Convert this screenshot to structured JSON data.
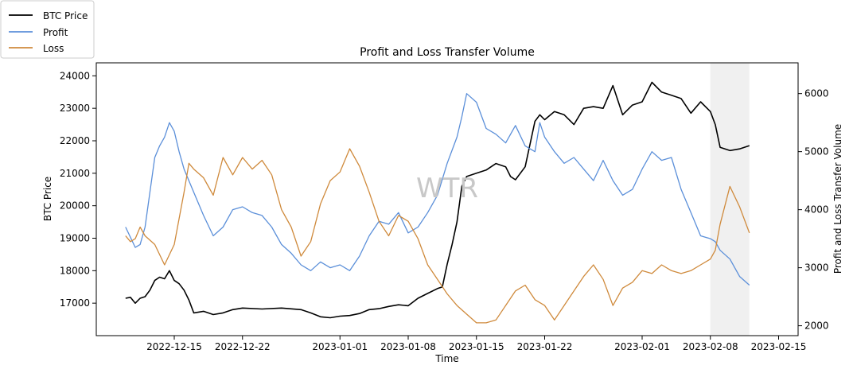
{
  "chart_data": {
    "type": "line",
    "title": "Profit and Loss Transfer Volume",
    "xlabel": "Time",
    "ylabel_left": "BTC Price",
    "ylabel_right": "Profit and Loss Transfer Volume",
    "watermark": "WTR",
    "legend_position": "top-left",
    "grid": false,
    "x_range": [
      "2022-12-07",
      "2023-02-17"
    ],
    "x_ticks": [
      "2022-12-15",
      "2022-12-22",
      "2023-01-01",
      "2023-01-08",
      "2023-01-15",
      "2023-01-22",
      "2023-02-01",
      "2023-02-08",
      "2023-02-15"
    ],
    "y_left_range": [
      16000,
      24400
    ],
    "y_left_ticks": [
      17000,
      18000,
      19000,
      20000,
      21000,
      22000,
      23000,
      24000
    ],
    "y_right_range": [
      1830,
      6530
    ],
    "y_right_ticks": [
      2000,
      3000,
      4000,
      5000,
      6000
    ],
    "shaded_region": [
      "2023-02-08",
      "2023-02-12"
    ],
    "series": [
      {
        "name": "BTC Price",
        "axis": "left",
        "color": "#000000",
        "points": [
          [
            "2022-12-10",
            17150
          ],
          [
            "2022-12-10T12",
            17180
          ],
          [
            "2022-12-11",
            17000
          ],
          [
            "2022-12-11T12",
            17150
          ],
          [
            "2022-12-12",
            17200
          ],
          [
            "2022-12-12T12",
            17400
          ],
          [
            "2022-12-13",
            17700
          ],
          [
            "2022-12-13T12",
            17800
          ],
          [
            "2022-12-14",
            17750
          ],
          [
            "2022-12-14T12",
            18000
          ],
          [
            "2022-12-15",
            17700
          ],
          [
            "2022-12-15T12",
            17600
          ],
          [
            "2022-12-16",
            17400
          ],
          [
            "2022-12-16T12",
            17100
          ],
          [
            "2022-12-17",
            16700
          ],
          [
            "2022-12-18",
            16750
          ],
          [
            "2022-12-19",
            16650
          ],
          [
            "2022-12-20",
            16700
          ],
          [
            "2022-12-21",
            16800
          ],
          [
            "2022-12-22",
            16850
          ],
          [
            "2022-12-24",
            16820
          ],
          [
            "2022-12-26",
            16850
          ],
          [
            "2022-12-28",
            16800
          ],
          [
            "2022-12-29",
            16700
          ],
          [
            "2022-12-30",
            16580
          ],
          [
            "2022-12-31",
            16550
          ],
          [
            "2023-01-01",
            16600
          ],
          [
            "2023-01-02",
            16620
          ],
          [
            "2023-01-03",
            16680
          ],
          [
            "2023-01-04",
            16800
          ],
          [
            "2023-01-05",
            16830
          ],
          [
            "2023-01-06",
            16900
          ],
          [
            "2023-01-07",
            16950
          ],
          [
            "2023-01-08",
            16920
          ],
          [
            "2023-01-09",
            17150
          ],
          [
            "2023-01-10",
            17300
          ],
          [
            "2023-01-11",
            17450
          ],
          [
            "2023-01-11T12",
            17500
          ],
          [
            "2023-01-12",
            18200
          ],
          [
            "2023-01-12T12",
            18800
          ],
          [
            "2023-01-13",
            19500
          ],
          [
            "2023-01-13T12",
            20600
          ],
          [
            "2023-01-14",
            20900
          ],
          [
            "2023-01-15",
            21000
          ],
          [
            "2023-01-16",
            21100
          ],
          [
            "2023-01-17",
            21300
          ],
          [
            "2023-01-18",
            21200
          ],
          [
            "2023-01-18T12",
            20900
          ],
          [
            "2023-01-19",
            20800
          ],
          [
            "2023-01-20",
            21200
          ],
          [
            "2023-01-21",
            22600
          ],
          [
            "2023-01-21T12",
            22800
          ],
          [
            "2023-01-22",
            22650
          ],
          [
            "2023-01-23",
            22900
          ],
          [
            "2023-01-24",
            22800
          ],
          [
            "2023-01-25",
            22500
          ],
          [
            "2023-01-26",
            23000
          ],
          [
            "2023-01-27",
            23050
          ],
          [
            "2023-01-28",
            23000
          ],
          [
            "2023-01-29",
            23700
          ],
          [
            "2023-01-30",
            22800
          ],
          [
            "2023-01-31",
            23100
          ],
          [
            "2023-02-01",
            23200
          ],
          [
            "2023-02-02",
            23800
          ],
          [
            "2023-02-03",
            23500
          ],
          [
            "2023-02-04",
            23400
          ],
          [
            "2023-02-05",
            23300
          ],
          [
            "2023-02-06",
            22850
          ],
          [
            "2023-02-07",
            23200
          ],
          [
            "2023-02-08",
            22900
          ],
          [
            "2023-02-08T12",
            22500
          ],
          [
            "2023-02-09",
            21800
          ],
          [
            "2023-02-10",
            21700
          ],
          [
            "2023-02-11",
            21750
          ],
          [
            "2023-02-12",
            21850
          ]
        ]
      },
      {
        "name": "Profit",
        "axis": "right",
        "color": "#5b8fd9",
        "points": [
          [
            "2022-12-10",
            3700
          ],
          [
            "2022-12-11",
            3350
          ],
          [
            "2022-12-11T12",
            3400
          ],
          [
            "2022-12-12",
            3700
          ],
          [
            "2022-12-12T12",
            4300
          ],
          [
            "2022-12-13",
            4900
          ],
          [
            "2022-12-13T12",
            5100
          ],
          [
            "2022-12-14",
            5250
          ],
          [
            "2022-12-14T12",
            5500
          ],
          [
            "2022-12-15",
            5350
          ],
          [
            "2022-12-15T12",
            5000
          ],
          [
            "2022-12-16",
            4700
          ],
          [
            "2022-12-17",
            4300
          ],
          [
            "2022-12-18",
            3900
          ],
          [
            "2022-12-19",
            3550
          ],
          [
            "2022-12-20",
            3700
          ],
          [
            "2022-12-21",
            4000
          ],
          [
            "2022-12-22",
            4050
          ],
          [
            "2022-12-23",
            3950
          ],
          [
            "2022-12-24",
            3900
          ],
          [
            "2022-12-25",
            3700
          ],
          [
            "2022-12-26",
            3400
          ],
          [
            "2022-12-27",
            3250
          ],
          [
            "2022-12-28",
            3050
          ],
          [
            "2022-12-29",
            2950
          ],
          [
            "2022-12-30",
            3100
          ],
          [
            "2022-12-31",
            3000
          ],
          [
            "2023-01-01",
            3050
          ],
          [
            "2023-01-02",
            2950
          ],
          [
            "2023-01-03",
            3200
          ],
          [
            "2023-01-04",
            3550
          ],
          [
            "2023-01-05",
            3800
          ],
          [
            "2023-01-06",
            3750
          ],
          [
            "2023-01-07",
            3950
          ],
          [
            "2023-01-08",
            3600
          ],
          [
            "2023-01-09",
            3700
          ],
          [
            "2023-01-10",
            3950
          ],
          [
            "2023-01-11",
            4250
          ],
          [
            "2023-01-12",
            4800
          ],
          [
            "2023-01-13",
            5250
          ],
          [
            "2023-01-13T12",
            5600
          ],
          [
            "2023-01-14",
            6000
          ],
          [
            "2023-01-15",
            5850
          ],
          [
            "2023-01-16",
            5400
          ],
          [
            "2023-01-17",
            5300
          ],
          [
            "2023-01-18",
            5150
          ],
          [
            "2023-01-19",
            5450
          ],
          [
            "2023-01-20",
            5100
          ],
          [
            "2023-01-21",
            5000
          ],
          [
            "2023-01-21T12",
            5500
          ],
          [
            "2023-01-22",
            5250
          ],
          [
            "2023-01-23",
            5000
          ],
          [
            "2023-01-24",
            4800
          ],
          [
            "2023-01-25",
            4900
          ],
          [
            "2023-01-26",
            4700
          ],
          [
            "2023-01-27",
            4500
          ],
          [
            "2023-01-28",
            4850
          ],
          [
            "2023-01-29",
            4500
          ],
          [
            "2023-01-30",
            4250
          ],
          [
            "2023-01-31",
            4350
          ],
          [
            "2023-02-01",
            4700
          ],
          [
            "2023-02-02",
            5000
          ],
          [
            "2023-02-03",
            4850
          ],
          [
            "2023-02-04",
            4900
          ],
          [
            "2023-02-05",
            4350
          ],
          [
            "2023-02-06",
            3950
          ],
          [
            "2023-02-07",
            3550
          ],
          [
            "2023-02-08",
            3500
          ],
          [
            "2023-02-08T12",
            3450
          ],
          [
            "2023-02-09",
            3300
          ],
          [
            "2023-02-10",
            3150
          ],
          [
            "2023-02-11",
            2850
          ],
          [
            "2023-02-12",
            2700
          ]
        ]
      },
      {
        "name": "Loss",
        "axis": "right",
        "color": "#cf8a3c",
        "points": [
          [
            "2022-12-10",
            3550
          ],
          [
            "2022-12-10T12",
            3450
          ],
          [
            "2022-12-11",
            3500
          ],
          [
            "2022-12-11T12",
            3700
          ],
          [
            "2022-12-12",
            3550
          ],
          [
            "2022-12-13",
            3400
          ],
          [
            "2022-12-14",
            3050
          ],
          [
            "2022-12-15",
            3400
          ],
          [
            "2022-12-16",
            4300
          ],
          [
            "2022-12-16T12",
            4800
          ],
          [
            "2022-12-17",
            4700
          ],
          [
            "2022-12-18",
            4550
          ],
          [
            "2022-12-19",
            4250
          ],
          [
            "2022-12-20",
            4900
          ],
          [
            "2022-12-21",
            4600
          ],
          [
            "2022-12-22",
            4900
          ],
          [
            "2022-12-23",
            4700
          ],
          [
            "2022-12-24",
            4850
          ],
          [
            "2022-12-25",
            4600
          ],
          [
            "2022-12-26",
            4000
          ],
          [
            "2022-12-27",
            3700
          ],
          [
            "2022-12-28",
            3200
          ],
          [
            "2022-12-29",
            3450
          ],
          [
            "2022-12-30",
            4100
          ],
          [
            "2022-12-31",
            4500
          ],
          [
            "2023-01-01",
            4650
          ],
          [
            "2023-01-02",
            5050
          ],
          [
            "2023-01-03",
            4750
          ],
          [
            "2023-01-04",
            4300
          ],
          [
            "2023-01-05",
            3800
          ],
          [
            "2023-01-06",
            3550
          ],
          [
            "2023-01-07",
            3900
          ],
          [
            "2023-01-08",
            3800
          ],
          [
            "2023-01-09",
            3500
          ],
          [
            "2023-01-10",
            3050
          ],
          [
            "2023-01-11",
            2800
          ],
          [
            "2023-01-12",
            2550
          ],
          [
            "2023-01-13",
            2350
          ],
          [
            "2023-01-14",
            2200
          ],
          [
            "2023-01-15",
            2050
          ],
          [
            "2023-01-16",
            2050
          ],
          [
            "2023-01-17",
            2100
          ],
          [
            "2023-01-18",
            2350
          ],
          [
            "2023-01-19",
            2600
          ],
          [
            "2023-01-20",
            2700
          ],
          [
            "2023-01-21",
            2450
          ],
          [
            "2023-01-22",
            2350
          ],
          [
            "2023-01-23",
            2100
          ],
          [
            "2023-01-24",
            2350
          ],
          [
            "2023-01-25",
            2600
          ],
          [
            "2023-01-26",
            2850
          ],
          [
            "2023-01-27",
            3050
          ],
          [
            "2023-01-28",
            2800
          ],
          [
            "2023-01-29",
            2350
          ],
          [
            "2023-01-30",
            2650
          ],
          [
            "2023-01-31",
            2750
          ],
          [
            "2023-02-01",
            2950
          ],
          [
            "2023-02-02",
            2900
          ],
          [
            "2023-02-03",
            3050
          ],
          [
            "2023-02-04",
            2950
          ],
          [
            "2023-02-05",
            2900
          ],
          [
            "2023-02-06",
            2950
          ],
          [
            "2023-02-07",
            3050
          ],
          [
            "2023-02-08",
            3150
          ],
          [
            "2023-02-08T12",
            3300
          ],
          [
            "2023-02-09",
            3750
          ],
          [
            "2023-02-10",
            4400
          ],
          [
            "2023-02-11",
            4050
          ],
          [
            "2023-02-12",
            3600
          ]
        ]
      }
    ]
  }
}
